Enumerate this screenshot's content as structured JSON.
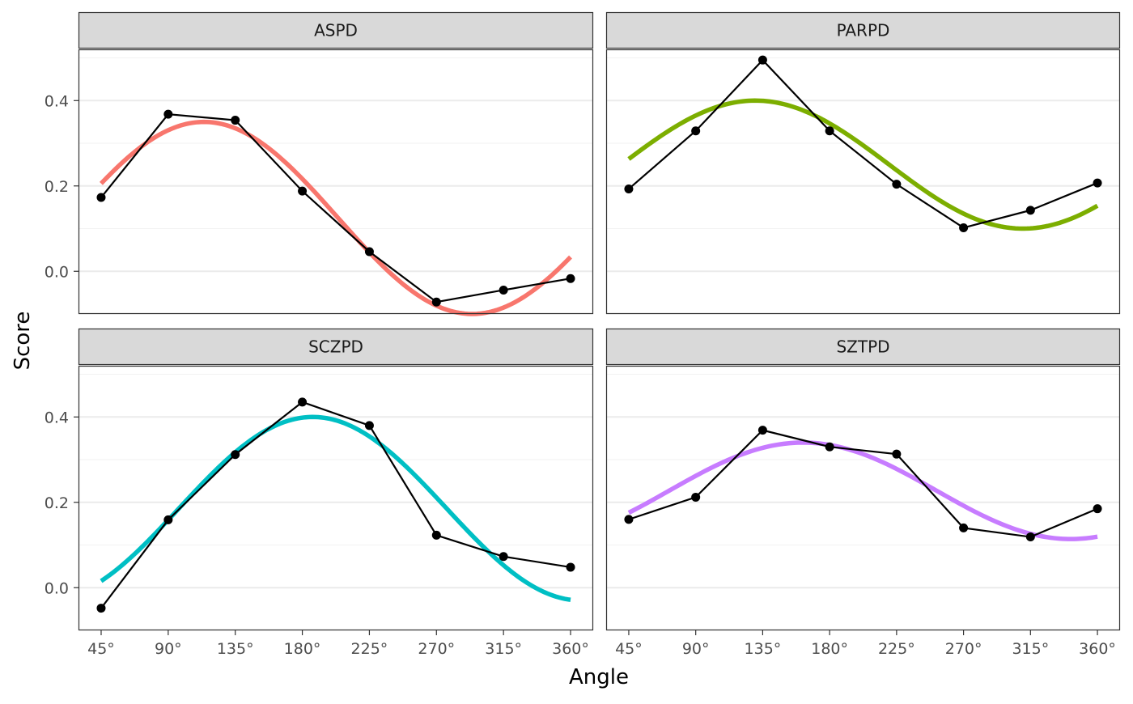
{
  "chart_data": {
    "type": "line",
    "layout": "facet-grid-2x2",
    "xlabel": "Angle",
    "ylabel": "Score",
    "x_ticks": [
      45,
      90,
      135,
      180,
      225,
      270,
      315,
      360
    ],
    "x_tick_labels": [
      "45°",
      "90°",
      "135°",
      "180°",
      "225°",
      "270°",
      "315°",
      "360°"
    ],
    "y_ticks": [
      0.0,
      0.2,
      0.4
    ],
    "y_tick_labels": [
      "0.0",
      "0.2",
      "0.4"
    ],
    "xlim": [
      45,
      360
    ],
    "ylim": [
      -0.1,
      0.52
    ],
    "grid": true,
    "legend": "none",
    "panels": [
      {
        "name": "ASPD",
        "color": "#F8766D",
        "observed": [
          {
            "x": 45,
            "y": 0.173
          },
          {
            "x": 90,
            "y": 0.368
          },
          {
            "x": 135,
            "y": 0.354
          },
          {
            "x": 180,
            "y": 0.188
          },
          {
            "x": 225,
            "y": 0.046
          },
          {
            "x": 270,
            "y": -0.072
          },
          {
            "x": 315,
            "y": -0.044
          },
          {
            "x": 360,
            "y": -0.017
          }
        ],
        "fit": {
          "elevation": 0.125,
          "amplitude": 0.225,
          "displacement": 114
        }
      },
      {
        "name": "PARPD",
        "color": "#7CAE00",
        "observed": [
          {
            "x": 45,
            "y": 0.193
          },
          {
            "x": 90,
            "y": 0.329
          },
          {
            "x": 135,
            "y": 0.495
          },
          {
            "x": 180,
            "y": 0.329
          },
          {
            "x": 225,
            "y": 0.204
          },
          {
            "x": 270,
            "y": 0.102
          },
          {
            "x": 315,
            "y": 0.143
          },
          {
            "x": 360,
            "y": 0.207
          }
        ],
        "fit": {
          "elevation": 0.25,
          "amplitude": 0.15,
          "displacement": 130
        }
      },
      {
        "name": "SCZPD",
        "color": "#00BFC4",
        "observed": [
          {
            "x": 45,
            "y": -0.048
          },
          {
            "x": 90,
            "y": 0.159
          },
          {
            "x": 135,
            "y": 0.312
          },
          {
            "x": 180,
            "y": 0.435
          },
          {
            "x": 225,
            "y": 0.38
          },
          {
            "x": 270,
            "y": 0.123
          },
          {
            "x": 315,
            "y": 0.073
          },
          {
            "x": 360,
            "y": 0.048
          }
        ],
        "fit": {
          "elevation": 0.185,
          "amplitude": 0.215,
          "displacement": 187
        }
      },
      {
        "name": "SZTPD",
        "color": "#C77CFF",
        "observed": [
          {
            "x": 45,
            "y": 0.16
          },
          {
            "x": 90,
            "y": 0.212
          },
          {
            "x": 135,
            "y": 0.369
          },
          {
            "x": 180,
            "y": 0.33
          },
          {
            "x": 225,
            "y": 0.313
          },
          {
            "x": 270,
            "y": 0.14
          },
          {
            "x": 315,
            "y": 0.119
          },
          {
            "x": 360,
            "y": 0.185
          }
        ],
        "fit": {
          "elevation": 0.227,
          "amplitude": 0.113,
          "displacement": 162
        }
      }
    ]
  }
}
